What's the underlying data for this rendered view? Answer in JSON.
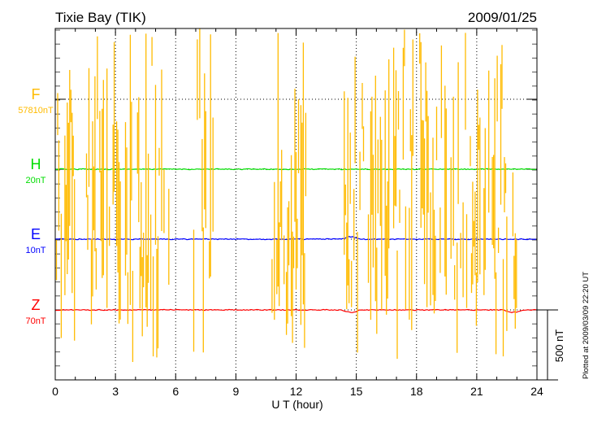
{
  "chart_data": {
    "type": "line",
    "title": "Tixie Bay (TIK)",
    "date": "2009/01/25",
    "xlabel": "U T (hour)",
    "xlim": [
      0,
      24
    ],
    "xticks": [
      "0",
      "3",
      "6",
      "9",
      "12",
      "15",
      "18",
      "21",
      "24"
    ],
    "scale_bar_label": "500 nT",
    "scale_bar_nT": 500,
    "footer": "Plotted at 2009/03/09 22:20 UT",
    "grid": "dotted vertical every 3 h",
    "series": [
      {
        "name": "F",
        "scale": "57810nT",
        "color": "#ffbb00",
        "kind": "spiky",
        "active_hours": [
          [
            0,
            1
          ],
          [
            1.5,
            3.3
          ],
          [
            3.5,
            5.7
          ],
          [
            6.9,
            7.9
          ],
          [
            10.8,
            12.6
          ],
          [
            14.4,
            17.9
          ],
          [
            18.1,
            21.2
          ],
          [
            21.3,
            22.5
          ],
          [
            22.8,
            23.1
          ]
        ]
      },
      {
        "name": "H",
        "scale": "20nT",
        "color": "#00dd00",
        "kind": "quiet"
      },
      {
        "name": "E",
        "scale": "10nT",
        "color": "#0000ff",
        "kind": "quiet"
      },
      {
        "name": "Z",
        "scale": "70nT",
        "color": "#ff0000",
        "kind": "quiet"
      }
    ]
  }
}
